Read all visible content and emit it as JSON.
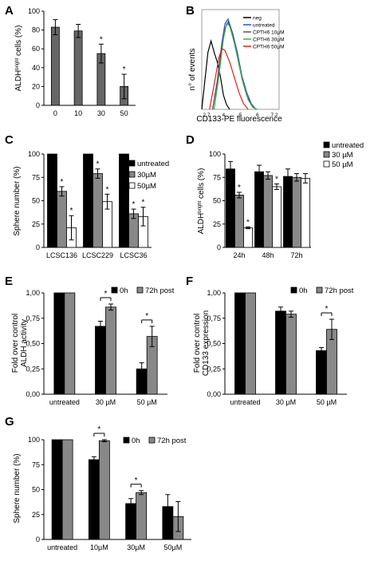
{
  "figure": {
    "background": "#ffffff"
  },
  "chart_data": [
    {
      "panel": "A",
      "type": "bar",
      "categories": [
        "0",
        "10",
        "30",
        "50"
      ],
      "series": [
        {
          "values": [
            83,
            79,
            55,
            20
          ],
          "errors": [
            8,
            7,
            10,
            13
          ],
          "color": "#666666"
        }
      ],
      "significant": [
        false,
        false,
        true,
        true
      ],
      "ylabel_prefix": "ALDH",
      "ylabel_sup": "bright",
      "ylabel_suffix": " cells (%)",
      "ylim": [
        0,
        100
      ],
      "yticks": [
        "0",
        "20",
        "40",
        "60",
        "80",
        "100"
      ],
      "xlabel": "",
      "grid": false
    },
    {
      "panel": "B",
      "type": "line",
      "xlabel": "CD133-PE fluorescence",
      "ylabel": "n° of events",
      "xticks": [
        "2.7",
        "4",
        "5",
        "6",
        "7.2"
      ],
      "series": [
        {
          "name": "neg",
          "color": "#000000"
        },
        {
          "name": "untreated",
          "color": "#2255cc"
        },
        {
          "name": "CPTH6 10µM",
          "color": "#555555"
        },
        {
          "name": "CPTH6 30µM",
          "color": "#44aa44"
        },
        {
          "name": "CPTH6 50µM",
          "color": "#dd2222"
        }
      ]
    },
    {
      "panel": "C",
      "type": "bar",
      "categories": [
        "LCSC136",
        "LCSC229",
        "LCSC36"
      ],
      "series": [
        {
          "name": "untreated",
          "values": [
            100,
            100,
            100
          ],
          "errors": [
            0,
            0,
            0
          ],
          "color": "#000000"
        },
        {
          "name": "30µM",
          "values": [
            60,
            79,
            36
          ],
          "errors": [
            5,
            5,
            5
          ],
          "color": "#888888"
        },
        {
          "name": "50µM",
          "values": [
            21,
            49,
            33
          ],
          "errors": [
            13,
            8,
            10
          ],
          "color": "#ffffff"
        }
      ],
      "significant": [
        [
          false,
          true,
          true
        ],
        [
          false,
          true,
          true
        ],
        [
          false,
          true,
          true
        ]
      ],
      "ylabel": "Sphere number (%)",
      "ylim": [
        0,
        100
      ],
      "yticks": [
        "0",
        "25",
        "50",
        "75",
        "100"
      ],
      "grid": false
    },
    {
      "panel": "D",
      "type": "bar",
      "categories": [
        "24h",
        "48h",
        "72h"
      ],
      "series": [
        {
          "name": "untreated",
          "values": [
            84,
            81,
            76
          ],
          "errors": [
            8,
            7,
            8
          ],
          "color": "#000000"
        },
        {
          "name": "30 µM",
          "values": [
            56,
            77,
            75
          ],
          "errors": [
            3,
            4,
            4
          ],
          "color": "#888888"
        },
        {
          "name": "50 µM",
          "values": [
            21,
            65,
            74
          ],
          "errors": [
            1,
            3,
            5
          ],
          "color": "#ffffff"
        }
      ],
      "significant": [
        [
          false,
          true,
          true
        ],
        [
          false,
          false,
          true
        ],
        [
          false,
          false,
          false
        ]
      ],
      "ylabel_prefix": "ALDH",
      "ylabel_sup": "bright",
      "ylabel_suffix": " cells (%)",
      "ylim": [
        0,
        100
      ],
      "yticks": [
        "0",
        "25",
        "50",
        "75",
        "100"
      ],
      "grid": false
    },
    {
      "panel": "E",
      "type": "bar",
      "categories": [
        "untreated",
        "30 µM",
        "50 µM"
      ],
      "series": [
        {
          "name": "0h",
          "values": [
            1.0,
            0.67,
            0.25
          ],
          "errors": [
            0,
            0.05,
            0.06
          ],
          "color": "#000000"
        },
        {
          "name": "72h post",
          "values": [
            1.0,
            0.86,
            0.57
          ],
          "errors": [
            0,
            0.03,
            0.1
          ],
          "color": "#888888"
        }
      ],
      "brackets": [
        1,
        2
      ],
      "ylabel_line1": "Fold  over control",
      "ylabel_line2": "ALDH activity",
      "ylim": [
        0,
        1.0
      ],
      "yticks": [
        "0,00",
        "0,25",
        "0,50",
        "0,75",
        "1,00"
      ],
      "grid": false
    },
    {
      "panel": "F",
      "type": "bar",
      "categories": [
        "untreated",
        "30 µM",
        "50 µM"
      ],
      "series": [
        {
          "name": "0h",
          "values": [
            1.0,
            0.82,
            0.43
          ],
          "errors": [
            0,
            0.04,
            0.03
          ],
          "color": "#000000"
        },
        {
          "name": "72h post",
          "values": [
            1.0,
            0.79,
            0.64
          ],
          "errors": [
            0,
            0.03,
            0.1
          ],
          "color": "#888888"
        }
      ],
      "brackets": [
        2
      ],
      "ylabel_line1": "Fold  over control",
      "ylabel_line2": "CD133 expression",
      "ylim": [
        0,
        1.0
      ],
      "yticks": [
        "0,00",
        "0,25",
        "0,50",
        "0,75",
        "1,00"
      ],
      "grid": false
    },
    {
      "panel": "G",
      "type": "bar",
      "categories": [
        "untreated",
        "10µM",
        "30µM",
        "50µM"
      ],
      "series": [
        {
          "name": "0h",
          "values": [
            100,
            80,
            36,
            33
          ],
          "errors": [
            0,
            3,
            5,
            12
          ],
          "color": "#000000"
        },
        {
          "name": "72h post",
          "values": [
            100,
            99,
            47,
            23
          ],
          "errors": [
            0,
            1,
            2,
            15
          ],
          "color": "#888888"
        }
      ],
      "brackets": [
        1,
        2
      ],
      "ylabel": "Sphere  number (%)",
      "ylim": [
        0,
        100
      ],
      "yticks": [
        "0",
        "25",
        "50",
        "75",
        "100"
      ],
      "grid": false
    }
  ]
}
